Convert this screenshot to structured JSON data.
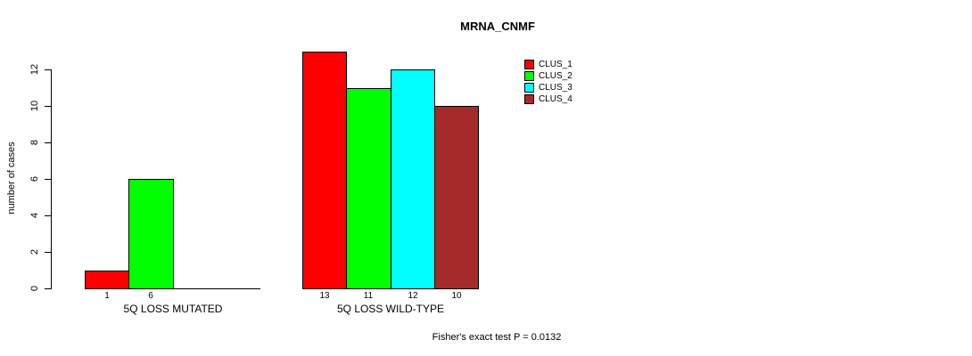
{
  "chart_data": {
    "type": "bar",
    "title": "MRNA_CNMF",
    "ylabel": "number of cases",
    "xlabel": "",
    "ylim": [
      0,
      12
    ],
    "yticks": [
      0,
      2,
      4,
      6,
      8,
      10,
      12
    ],
    "grid": false,
    "background": "#ffffff",
    "categories": [
      "5Q LOSS MUTATED",
      "5Q LOSS WILD-TYPE"
    ],
    "series": [
      {
        "name": "CLUS_1",
        "color": "#ff0000",
        "values": [
          1,
          13
        ]
      },
      {
        "name": "CLUS_2",
        "color": "#00ff00",
        "values": [
          6,
          11
        ]
      },
      {
        "name": "CLUS_3",
        "color": "#00ffff",
        "values": [
          0,
          12
        ]
      },
      {
        "name": "CLUS_4",
        "color": "#a52a2a",
        "values": [
          0,
          10
        ]
      }
    ],
    "value_labels": [
      [
        "1",
        "6",
        "",
        ""
      ],
      [
        "13",
        "11",
        "12",
        "10"
      ]
    ],
    "legend": {
      "position": "top-right",
      "entries": [
        "CLUS_1",
        "CLUS_2",
        "CLUS_3",
        "CLUS_4"
      ]
    },
    "annotation": "Fisher's exact test P = 0.0132"
  }
}
